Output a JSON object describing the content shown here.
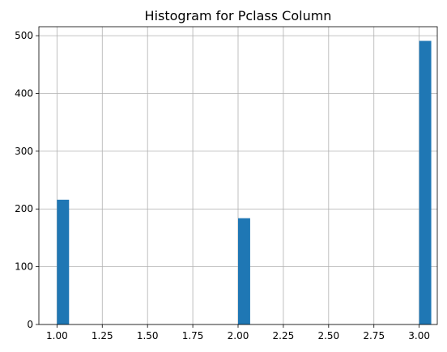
{
  "chart_data": {
    "type": "bar",
    "title": "Histogram for Pclass Column",
    "xlabel": "",
    "ylabel": "",
    "x": [
      1.0,
      2.0,
      3.0
    ],
    "values": [
      216,
      184,
      491
    ],
    "bin_width": 0.0667,
    "xlim": [
      0.9,
      3.1
    ],
    "ylim": [
      0,
      515.55
    ],
    "x_ticks": [
      1.0,
      1.25,
      1.5,
      1.75,
      2.0,
      2.25,
      2.5,
      2.75,
      3.0
    ],
    "x_tick_labels": [
      "1.00",
      "1.25",
      "1.50",
      "1.75",
      "2.00",
      "2.25",
      "2.50",
      "2.75",
      "3.00"
    ],
    "y_ticks": [
      0,
      100,
      200,
      300,
      400,
      500
    ],
    "y_tick_labels": [
      "0",
      "100",
      "200",
      "300",
      "400",
      "500"
    ],
    "grid": true,
    "bar_color": "#1f77b4"
  }
}
